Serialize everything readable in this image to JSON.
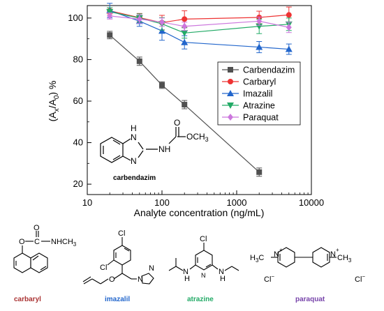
{
  "chart_data": {
    "type": "line",
    "xscale": "log",
    "xlim": [
      10,
      10000
    ],
    "ylim": [
      15,
      106
    ],
    "xlabel": "Analyte concentration (ng/mL)",
    "ylabel": {
      "prefix": "(A",
      "sub1": "x",
      "mid": "/A",
      "sub2": "0",
      "suffix": ") %"
    },
    "x_ticks": [
      {
        "v": 10,
        "label": "10"
      },
      {
        "v": 100,
        "label": "100"
      },
      {
        "v": 1000,
        "label": "1000"
      },
      {
        "v": 10000,
        "label": "10000"
      }
    ],
    "y_ticks": [
      {
        "v": 20,
        "label": "20"
      },
      {
        "v": 40,
        "label": "40"
      },
      {
        "v": 60,
        "label": "60"
      },
      {
        "v": 80,
        "label": "80"
      },
      {
        "v": 100,
        "label": "100"
      }
    ],
    "legend_position": "right",
    "series": [
      {
        "name": "Carbendazim",
        "color": "#505050",
        "marker": "square",
        "points": [
          [
            20,
            91.8,
            1.8
          ],
          [
            50,
            79.2,
            2.0
          ],
          [
            100,
            67.7,
            1.6
          ],
          [
            200,
            58.3,
            2.0
          ],
          [
            2000,
            25.8,
            2.0
          ]
        ]
      },
      {
        "name": "Carbaryl",
        "color": "#ee3333",
        "marker": "circle",
        "points": [
          [
            20,
            103.5,
            1.5
          ],
          [
            50,
            100.2,
            2.0
          ],
          [
            100,
            97.8,
            3.5
          ],
          [
            200,
            99.5,
            4.0
          ],
          [
            2000,
            100.3,
            3.0
          ],
          [
            5000,
            101.5,
            3.8
          ]
        ]
      },
      {
        "name": "Imazalil",
        "color": "#2266cc",
        "marker": "triangle",
        "points": [
          [
            20,
            103.6,
            3.5
          ],
          [
            50,
            98.5,
            2.5
          ],
          [
            100,
            93.8,
            4.5
          ],
          [
            200,
            88.3,
            3.2
          ],
          [
            2000,
            86.0,
            2.7
          ],
          [
            5000,
            85.0,
            2.5
          ]
        ]
      },
      {
        "name": "Atrazine",
        "color": "#22aa66",
        "marker": "triangle-down",
        "points": [
          [
            20,
            103.0,
            2.0
          ],
          [
            50,
            100.0,
            2.0
          ],
          [
            100,
            97.2,
            3.0
          ],
          [
            200,
            92.8,
            2.5
          ],
          [
            2000,
            96.0,
            3.5
          ],
          [
            5000,
            97.0,
            3.0
          ]
        ]
      },
      {
        "name": "Paraquat",
        "color": "#cc77dd",
        "marker": "diamond",
        "points": [
          [
            20,
            101.0,
            1.5
          ],
          [
            50,
            99.5,
            2.0
          ],
          [
            100,
            98.0,
            2.0
          ],
          [
            200,
            96.0,
            2.0
          ],
          [
            2000,
            98.5,
            2.0
          ],
          [
            5000,
            95.5,
            2.5
          ]
        ]
      }
    ]
  },
  "structures": {
    "inset": {
      "name": "carbendazim",
      "nh_top": "H",
      "n_top": "N",
      "n_bottom": "N",
      "nh_right": "NH",
      "carbonyl_o": "O",
      "och3": "OCH",
      "och3_sub": "3"
    },
    "carbaryl": {
      "name": "carbaryl",
      "color": "#aa3333",
      "o_top": "O",
      "c": "C",
      "nhch3": "NHCH",
      "nhch3_sub": "3",
      "o_ring": "O"
    },
    "imazalil": {
      "name": "imazalil",
      "color": "#2266cc",
      "cl_top": "Cl",
      "cl_left": "Cl",
      "o": "O",
      "n1": "N",
      "n2": "N"
    },
    "atrazine": {
      "name": "atrazine",
      "color": "#22aa66",
      "cl": "Cl",
      "n_ring": "N",
      "n_left": "N",
      "n_right": "N",
      "h_left": "H",
      "h_right": "H"
    },
    "paraquat": {
      "name": "paraquat",
      "color": "#7744aa",
      "h3c": "H",
      "h3c_sub": "3",
      "h3c_c": "C",
      "n_left": "N",
      "n_right": "N",
      "plus": "+",
      "ch3": "CH",
      "ch3_sub": "3",
      "cl1": "Cl",
      "cl2": "Cl",
      "minus": "−"
    }
  }
}
